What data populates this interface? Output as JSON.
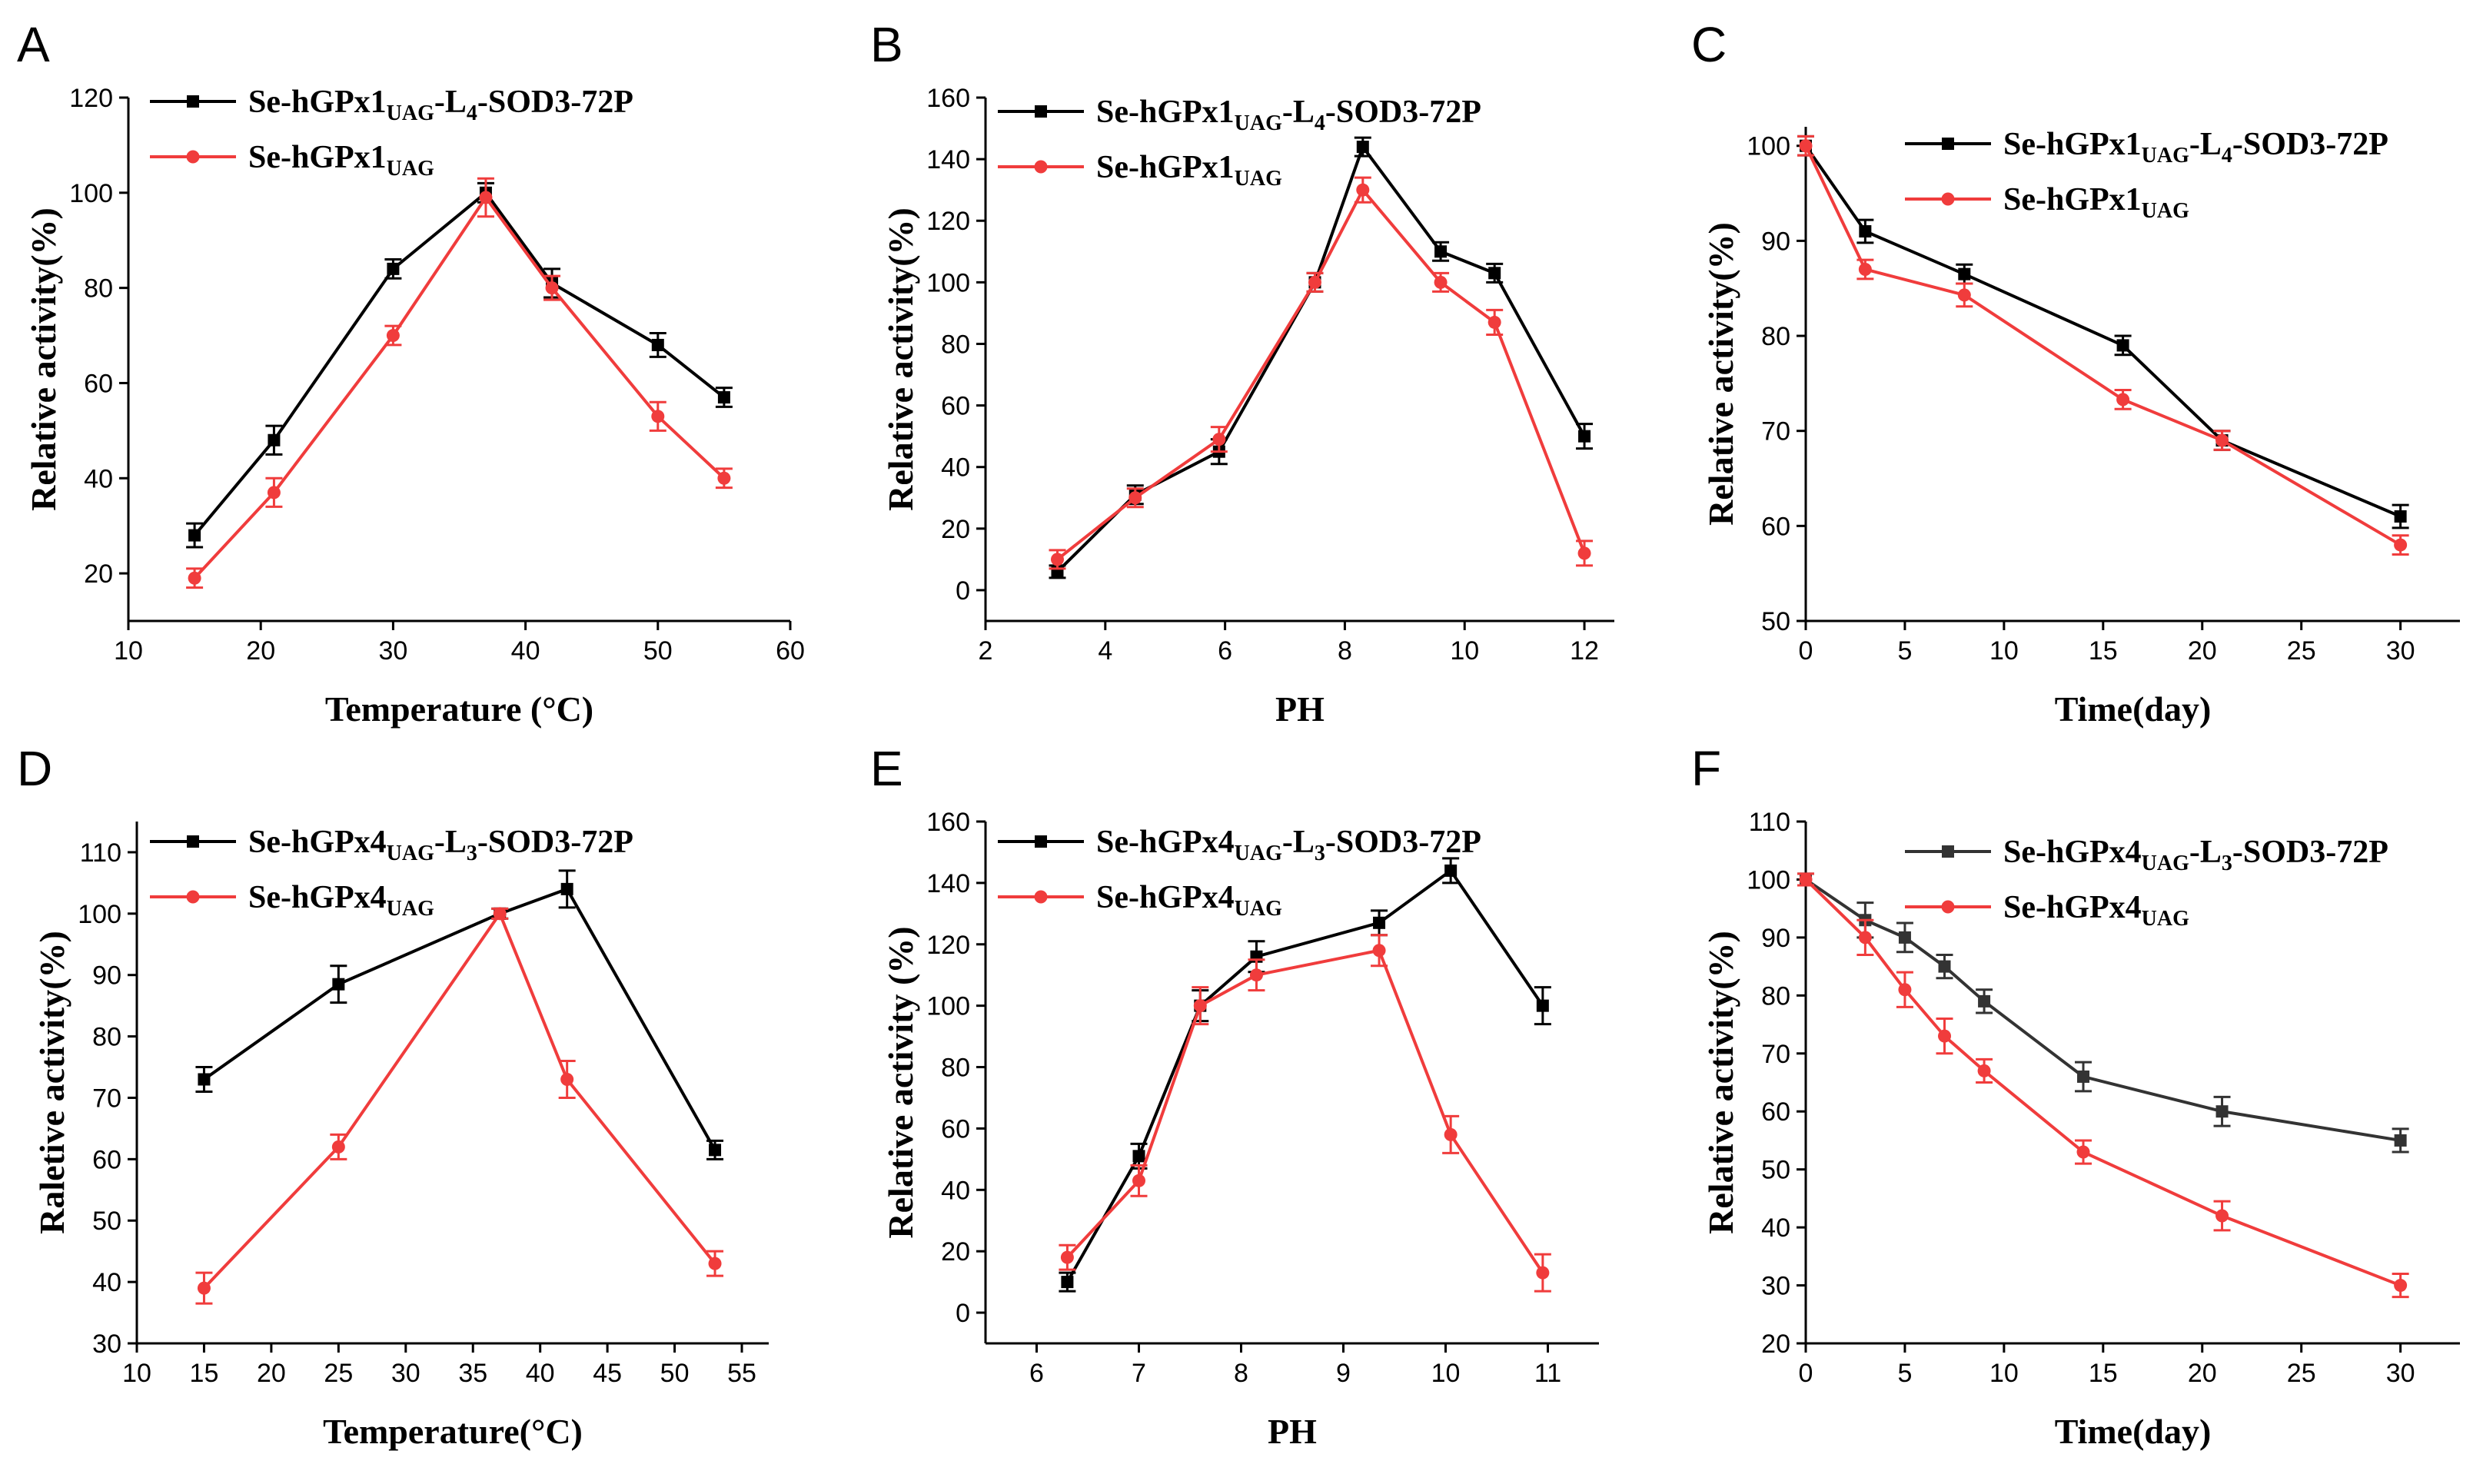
{
  "colors": {
    "black_series": "#000000",
    "red_series": "#f03c3c"
  },
  "chart_data": [
    {
      "panel": "A",
      "type": "line",
      "xlabel": "Temperature (°C)",
      "ylabel": "Relative activity(%)",
      "xlim": [
        10,
        60
      ],
      "xticks": [
        10,
        20,
        30,
        40,
        50,
        60
      ],
      "ylim": [
        10,
        120
      ],
      "yticks": [
        20,
        40,
        60,
        80,
        100,
        120
      ],
      "legend": "top-left",
      "series": [
        {
          "name_main": "Se-hGPx1",
          "name_sub": "UAG",
          "name_rest": "-L",
          "name_sub2": "4",
          "name_tail": "-SOD3-72P",
          "marker": "square",
          "color": "#000000",
          "x": [
            15,
            21,
            30,
            37,
            42,
            50,
            55
          ],
          "values": [
            28,
            48,
            84,
            100,
            81,
            68,
            57
          ],
          "err": [
            2.5,
            3,
            2,
            2,
            3,
            2.5,
            2
          ]
        },
        {
          "name_main": "Se-hGPx1",
          "name_sub": "UAG",
          "name_rest": "",
          "name_sub2": "",
          "name_tail": "",
          "marker": "circle",
          "color": "#f03c3c",
          "x": [
            15,
            21,
            30,
            37,
            42,
            50,
            55
          ],
          "values": [
            19,
            37,
            70,
            99,
            80,
            53,
            40
          ],
          "err": [
            2,
            3,
            2,
            4,
            2.5,
            3,
            2
          ]
        }
      ]
    },
    {
      "panel": "B",
      "type": "line",
      "xlabel": "PH",
      "ylabel": "Relative activity(%)",
      "xlim": [
        2,
        12.5
      ],
      "xticks": [
        2,
        4,
        6,
        8,
        10,
        12
      ],
      "ylim": [
        -10,
        160
      ],
      "yticks": [
        0,
        20,
        40,
        60,
        80,
        100,
        120,
        140,
        160
      ],
      "legend": "top-left",
      "series": [
        {
          "name_main": "Se-hGPx1",
          "name_sub": "UAG",
          "name_rest": "-L",
          "name_sub2": "4",
          "name_tail": "-SOD3-72P",
          "marker": "square",
          "color": "#000000",
          "x": [
            3.2,
            4.5,
            5.9,
            7.5,
            8.3,
            9.6,
            10.5,
            12
          ],
          "values": [
            6,
            31,
            45,
            100,
            144,
            110,
            103,
            50
          ],
          "err": [
            2,
            3,
            4,
            3,
            3,
            3,
            3,
            4
          ]
        },
        {
          "name_main": "Se-hGPx1",
          "name_sub": "UAG",
          "name_rest": "",
          "name_sub2": "",
          "name_tail": "",
          "marker": "circle",
          "color": "#f03c3c",
          "x": [
            3.2,
            4.5,
            5.9,
            7.5,
            8.3,
            9.6,
            10.5,
            12
          ],
          "values": [
            10,
            30,
            49,
            100,
            130,
            100,
            87,
            12
          ],
          "err": [
            3,
            3,
            4,
            3,
            4,
            3,
            4,
            4
          ]
        }
      ]
    },
    {
      "panel": "C",
      "type": "line",
      "xlabel": "Time(day)",
      "ylabel": "Relative activity(%)",
      "xlim": [
        0,
        33
      ],
      "xticks": [
        0,
        5,
        10,
        15,
        20,
        25,
        30
      ],
      "ylim": [
        50,
        102
      ],
      "yticks": [
        50,
        60,
        70,
        80,
        90,
        100
      ],
      "legend": "top-right",
      "series": [
        {
          "name_main": "Se-hGPx1",
          "name_sub": "UAG",
          "name_rest": "-L",
          "name_sub2": "4",
          "name_tail": "-SOD3-72P",
          "marker": "square",
          "color": "#000000",
          "x": [
            0,
            3,
            8,
            16,
            21,
            30
          ],
          "values": [
            100,
            91,
            86.5,
            79,
            69,
            61
          ],
          "err": [
            1,
            1.2,
            1,
            1,
            1,
            1.2
          ]
        },
        {
          "name_main": "Se-hGPx1",
          "name_sub": "UAG",
          "name_rest": "",
          "name_sub2": "",
          "name_tail": "",
          "marker": "circle",
          "color": "#f03c3c",
          "x": [
            0,
            3,
            8,
            16,
            21,
            30
          ],
          "values": [
            100,
            87,
            84.3,
            73.3,
            69,
            58
          ],
          "err": [
            1,
            1,
            1.2,
            1,
            1,
            1
          ]
        }
      ]
    },
    {
      "panel": "D",
      "type": "line",
      "xlabel": "Temperature(°C)",
      "ylabel": "Raletive activity(%)",
      "xlim": [
        10,
        57
      ],
      "xticks": [
        10,
        15,
        20,
        25,
        30,
        35,
        40,
        45,
        50,
        55
      ],
      "ylim": [
        30,
        115
      ],
      "yticks": [
        30,
        40,
        50,
        60,
        70,
        80,
        90,
        100,
        110
      ],
      "legend": "top-left",
      "series": [
        {
          "name_main": "Se-hGPx4",
          "name_sub": "UAG",
          "name_rest": "-L",
          "name_sub2": "3",
          "name_tail": "-SOD3-72P",
          "marker": "square",
          "color": "#000000",
          "x": [
            15,
            25,
            37,
            42,
            53
          ],
          "values": [
            73,
            88.5,
            100,
            104,
            61.5
          ],
          "err": [
            2,
            3,
            0.8,
            3,
            1.5
          ]
        },
        {
          "name_main": "Se-hGPx4",
          "name_sub": "UAG",
          "name_rest": "",
          "name_sub2": "",
          "name_tail": "",
          "marker": "circle",
          "color": "#f03c3c",
          "x": [
            15,
            25,
            37,
            42,
            53
          ],
          "values": [
            39,
            62,
            100,
            73,
            43
          ],
          "err": [
            2.5,
            2,
            0.8,
            3,
            2
          ]
        }
      ]
    },
    {
      "panel": "E",
      "type": "line",
      "xlabel": "PH",
      "ylabel": "Relative activity (%)",
      "xlim": [
        5.5,
        11.5
      ],
      "xticks": [
        6,
        7,
        8,
        9,
        10,
        11
      ],
      "ylim": [
        -10,
        160
      ],
      "yticks": [
        0,
        20,
        40,
        60,
        80,
        100,
        120,
        140,
        160
      ],
      "legend": "top-left",
      "series": [
        {
          "name_main": "Se-hGPx4",
          "name_sub": "UAG",
          "name_rest": "-L",
          "name_sub2": "3",
          "name_tail": "-SOD3-72P",
          "marker": "square",
          "color": "#000000",
          "x": [
            6.3,
            7,
            7.6,
            8.15,
            9.35,
            10.05,
            10.95
          ],
          "values": [
            10,
            51,
            100,
            116,
            127,
            144,
            100
          ],
          "err": [
            3,
            4,
            5,
            5,
            4,
            4,
            6
          ]
        },
        {
          "name_main": "Se-hGPx4",
          "name_sub": "UAG",
          "name_rest": "",
          "name_sub2": "",
          "name_tail": "",
          "marker": "circle",
          "color": "#f03c3c",
          "x": [
            6.3,
            7,
            7.6,
            8.15,
            9.35,
            10.05,
            10.95
          ],
          "values": [
            18,
            43,
            100,
            110,
            118,
            58,
            13
          ],
          "err": [
            4,
            5,
            6,
            5,
            5,
            6,
            6
          ]
        }
      ]
    },
    {
      "panel": "F",
      "type": "line",
      "xlabel": "Time(day)",
      "ylabel": "Relative activity(%)",
      "xlim": [
        0,
        33
      ],
      "xticks": [
        0,
        5,
        10,
        15,
        20,
        25,
        30
      ],
      "ylim": [
        20,
        110
      ],
      "yticks": [
        20,
        30,
        40,
        50,
        60,
        70,
        80,
        90,
        100,
        110
      ],
      "legend": "top-right",
      "series": [
        {
          "name_main": "Se-hGPx4",
          "name_sub": "UAG",
          "name_rest": "-L",
          "name_sub2": "3",
          "name_tail": "-SOD3-72P",
          "marker": "square",
          "color": "#333333",
          "x": [
            0,
            3,
            5,
            7,
            9,
            14,
            21,
            30
          ],
          "values": [
            100,
            93,
            90,
            85,
            79,
            66,
            60,
            55
          ],
          "err": [
            1,
            3,
            2.5,
            2,
            2,
            2.5,
            2.5,
            2
          ]
        },
        {
          "name_main": "Se-hGPx4",
          "name_sub": "UAG",
          "name_rest": "",
          "name_sub2": "",
          "name_tail": "",
          "marker": "circle",
          "color": "#f03c3c",
          "x": [
            0,
            3,
            5,
            7,
            9,
            14,
            21,
            30
          ],
          "values": [
            100,
            90,
            81,
            73,
            67,
            53,
            42,
            30
          ],
          "err": [
            1,
            3,
            3,
            3,
            2,
            2,
            2.5,
            2
          ]
        }
      ]
    }
  ]
}
